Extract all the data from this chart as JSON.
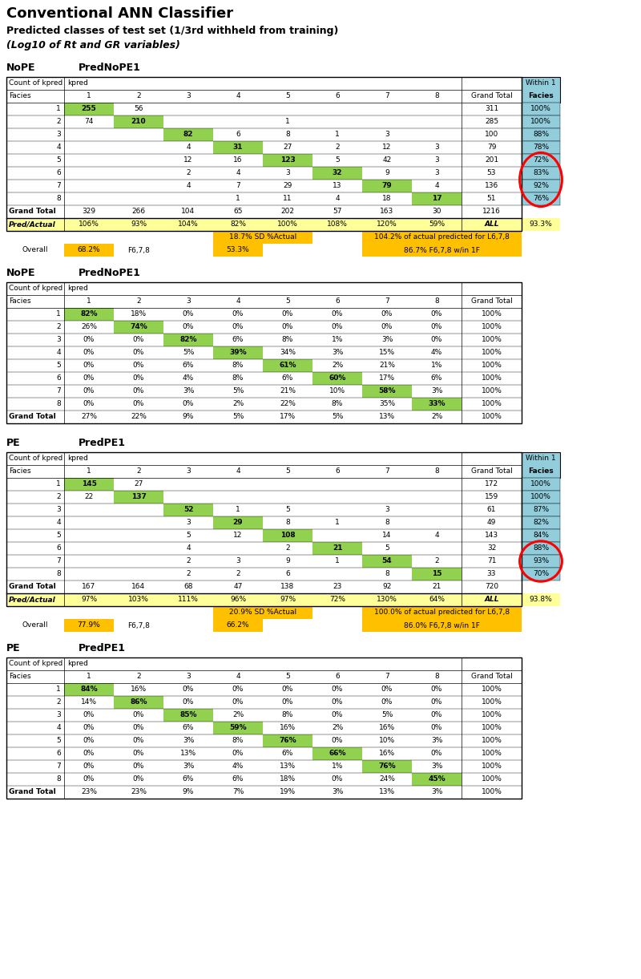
{
  "title1": "Conventional ANN Classifier",
  "title2": "Predicted classes of test set (1/3rd withheld from training)",
  "title3": "(Log10 of Rt and GR variables)",
  "table1_label": "NoPE",
  "table1_pred_label": "PredNoPE1",
  "table1_rows": [
    [
      "1",
      "255",
      "56",
      "",
      "",
      "",
      "",
      "",
      "",
      "311"
    ],
    [
      "2",
      "74",
      "210",
      "",
      "",
      "1",
      "",
      "",
      "",
      "285"
    ],
    [
      "3",
      "",
      "",
      "82",
      "6",
      "8",
      "1",
      "3",
      "",
      "100"
    ],
    [
      "4",
      "",
      "",
      "4",
      "31",
      "27",
      "2",
      "12",
      "3",
      "79"
    ],
    [
      "5",
      "",
      "",
      "12",
      "16",
      "123",
      "5",
      "42",
      "3",
      "201"
    ],
    [
      "6",
      "",
      "",
      "2",
      "4",
      "3",
      "32",
      "9",
      "3",
      "53"
    ],
    [
      "7",
      "",
      "",
      "4",
      "7",
      "29",
      "13",
      "79",
      "4",
      "136"
    ],
    [
      "8",
      "",
      "",
      "",
      "1",
      "11",
      "4",
      "18",
      "17",
      "51"
    ]
  ],
  "table1_grand_total": [
    "Grand Total",
    "329",
    "266",
    "104",
    "65",
    "202",
    "57",
    "163",
    "30",
    "1216"
  ],
  "table1_pred_actual": [
    "Pred/Actual",
    "106%",
    "93%",
    "104%",
    "82%",
    "100%",
    "108%",
    "120%",
    "59%",
    "ALL"
  ],
  "table1_overall_acc": "93.3%",
  "table1_sd_label": "18.7% SD %Actual",
  "table1_l678_pred": "104.2% of actual predicted for L6,7,8",
  "table1_overall": "Overall",
  "table1_overall_val": "68.2%",
  "table1_f678": "F6,7,8",
  "table1_f678_val": "53.3%",
  "table1_f678_win": "86.7% F6,7,8 w/in 1F",
  "table1_within1": [
    "100%",
    "100%",
    "88%",
    "78%",
    "72%",
    "83%",
    "92%",
    "76%"
  ],
  "table1_circle_rows": [
    4,
    5,
    6,
    7
  ],
  "table2_label": "NoPE",
  "table2_pred_label": "PredNoPE1",
  "table2_rows": [
    [
      "1",
      "82%",
      "18%",
      "0%",
      "0%",
      "0%",
      "0%",
      "0%",
      "0%",
      "100%"
    ],
    [
      "2",
      "26%",
      "74%",
      "0%",
      "0%",
      "0%",
      "0%",
      "0%",
      "0%",
      "100%"
    ],
    [
      "3",
      "0%",
      "0%",
      "82%",
      "6%",
      "8%",
      "1%",
      "3%",
      "0%",
      "100%"
    ],
    [
      "4",
      "0%",
      "0%",
      "5%",
      "39%",
      "34%",
      "3%",
      "15%",
      "4%",
      "100%"
    ],
    [
      "5",
      "0%",
      "0%",
      "6%",
      "8%",
      "61%",
      "2%",
      "21%",
      "1%",
      "100%"
    ],
    [
      "6",
      "0%",
      "0%",
      "4%",
      "8%",
      "6%",
      "60%",
      "17%",
      "6%",
      "100%"
    ],
    [
      "7",
      "0%",
      "0%",
      "3%",
      "5%",
      "21%",
      "10%",
      "58%",
      "3%",
      "100%"
    ],
    [
      "8",
      "0%",
      "0%",
      "0%",
      "2%",
      "22%",
      "8%",
      "35%",
      "33%",
      "100%"
    ]
  ],
  "table2_grand_total": [
    "Grand Total",
    "27%",
    "22%",
    "9%",
    "5%",
    "17%",
    "5%",
    "13%",
    "2%",
    "100%"
  ],
  "table3_label": "PE",
  "table3_pred_label": "PredPE1",
  "table3_rows": [
    [
      "1",
      "145",
      "27",
      "",
      "",
      "",
      "",
      "",
      "",
      "172"
    ],
    [
      "2",
      "22",
      "137",
      "",
      "",
      "",
      "",
      "",
      "",
      "159"
    ],
    [
      "3",
      "",
      "",
      "52",
      "1",
      "5",
      "",
      "3",
      "",
      "61"
    ],
    [
      "4",
      "",
      "",
      "3",
      "29",
      "8",
      "1",
      "8",
      "",
      "49"
    ],
    [
      "5",
      "",
      "",
      "5",
      "12",
      "108",
      "",
      "14",
      "4",
      "143"
    ],
    [
      "6",
      "",
      "",
      "4",
      "",
      "2",
      "21",
      "5",
      "",
      "32"
    ],
    [
      "7",
      "",
      "",
      "2",
      "3",
      "9",
      "1",
      "54",
      "2",
      "71"
    ],
    [
      "8",
      "",
      "",
      "2",
      "2",
      "6",
      "",
      "8",
      "15",
      "33"
    ]
  ],
  "table3_grand_total": [
    "Grand Total",
    "167",
    "164",
    "68",
    "47",
    "138",
    "23",
    "92",
    "21",
    "720"
  ],
  "table3_pred_actual": [
    "Pred/Actual",
    "97%",
    "103%",
    "111%",
    "96%",
    "97%",
    "72%",
    "130%",
    "64%",
    "ALL"
  ],
  "table3_overall_acc": "93.8%",
  "table3_sd_label": "20.9% SD %Actual",
  "table3_l678_pred": "100.0% of actual predicted for L6,7,8",
  "table3_overall": "Overall",
  "table3_overall_val": "77.9%",
  "table3_f678": "F6,7,8",
  "table3_f678_val": "66.2%",
  "table3_f678_win": "86.0% F6,7,8 w/in 1F",
  "table3_within1": [
    "100%",
    "100%",
    "87%",
    "82%",
    "84%",
    "88%",
    "93%",
    "70%"
  ],
  "table3_circle_rows": [
    5,
    6,
    7
  ],
  "table4_label": "PE",
  "table4_pred_label": "PredPE1",
  "table4_rows": [
    [
      "1",
      "84%",
      "16%",
      "0%",
      "0%",
      "0%",
      "0%",
      "0%",
      "0%",
      "100%"
    ],
    [
      "2",
      "14%",
      "86%",
      "0%",
      "0%",
      "0%",
      "0%",
      "0%",
      "0%",
      "100%"
    ],
    [
      "3",
      "0%",
      "0%",
      "85%",
      "2%",
      "8%",
      "0%",
      "5%",
      "0%",
      "100%"
    ],
    [
      "4",
      "0%",
      "0%",
      "6%",
      "59%",
      "16%",
      "2%",
      "16%",
      "0%",
      "100%"
    ],
    [
      "5",
      "0%",
      "0%",
      "3%",
      "8%",
      "76%",
      "0%",
      "10%",
      "3%",
      "100%"
    ],
    [
      "6",
      "0%",
      "0%",
      "13%",
      "0%",
      "6%",
      "66%",
      "16%",
      "0%",
      "100%"
    ],
    [
      "7",
      "0%",
      "0%",
      "3%",
      "4%",
      "13%",
      "1%",
      "76%",
      "3%",
      "100%"
    ],
    [
      "8",
      "0%",
      "0%",
      "6%",
      "6%",
      "18%",
      "0%",
      "24%",
      "45%",
      "100%"
    ]
  ],
  "table4_grand_total": [
    "Grand Total",
    "23%",
    "23%",
    "9%",
    "7%",
    "19%",
    "3%",
    "13%",
    "3%",
    "100%"
  ],
  "color_green": "#92D050",
  "color_yellow": "#FFFF99",
  "color_orange": "#FFC000",
  "color_cyan": "#92CDDC",
  "color_white": "#FFFFFF"
}
